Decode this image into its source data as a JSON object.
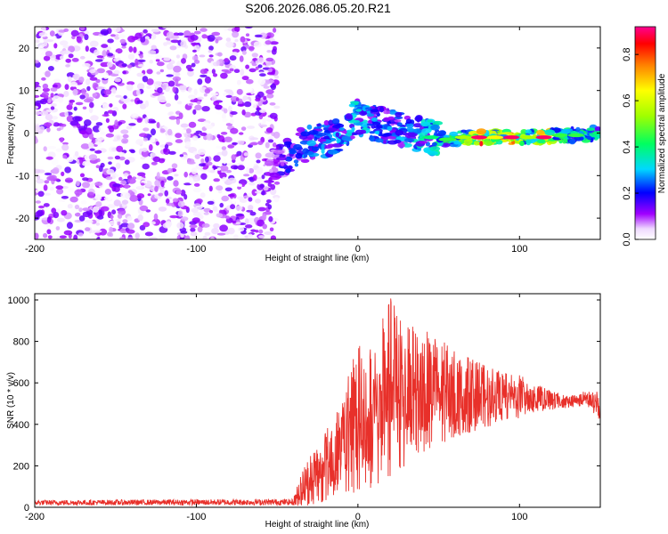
{
  "title": "S206.2026.086.05.20.R21",
  "chart_data": [
    {
      "type": "heatmap",
      "xlabel": "Height of straight line (km)",
      "ylabel": "Frequency (Hz)",
      "xlim": [
        -200,
        150
      ],
      "ylim": [
        -25,
        25
      ],
      "xticks": [
        -200,
        -100,
        0,
        100
      ],
      "yticks": [
        20,
        10,
        0,
        -10,
        -20
      ],
      "colorbar": {
        "label": "Normalized spectral amplitude",
        "range": [
          0.0,
          0.92
        ],
        "ticks": [
          "0.0",
          "0.2",
          "0.4",
          "0.6",
          "0.8"
        ],
        "tick_values": [
          0.0,
          0.2,
          0.4,
          0.6,
          0.8
        ]
      },
      "trace": {
        "x": [
          -55,
          -45,
          -35,
          -25,
          -15,
          -5,
          0,
          5,
          15,
          25,
          35,
          45,
          55,
          65,
          75,
          85,
          95,
          105,
          115,
          125,
          135,
          150
        ],
        "frequency": [
          -8,
          -6,
          -3,
          -2,
          -1,
          2,
          4,
          3,
          2,
          1,
          0,
          -1,
          -1.5,
          -1,
          -1,
          -1,
          -1,
          -1,
          -1,
          -0.5,
          -0.5,
          0
        ],
        "amplitude": [
          0.15,
          0.2,
          0.3,
          0.3,
          0.3,
          0.35,
          0.4,
          0.35,
          0.3,
          0.3,
          0.35,
          0.4,
          0.45,
          0.55,
          0.9,
          0.65,
          0.9,
          0.55,
          0.9,
          0.45,
          0.45,
          0.4
        ]
      },
      "noise_region": {
        "x_range": [
          -200,
          -50
        ],
        "amplitude_range": [
          0.0,
          0.15
        ]
      }
    },
    {
      "type": "line",
      "xlabel": "Height of straight line (km)",
      "ylabel": "SNR (10 * v/v)",
      "xlim": [
        -200,
        150
      ],
      "ylim": [
        0,
        1030
      ],
      "xticks": [
        -200,
        -100,
        0,
        100
      ],
      "yticks": [
        0,
        200,
        400,
        600,
        800,
        1000
      ],
      "series": [
        {
          "name": "SNR",
          "color": "#e8302a",
          "envelope": {
            "x": [
              -200,
              -40,
              -35,
              -30,
              -20,
              -10,
              0,
              10,
              20,
              30,
              40,
              50,
              60,
              70,
              80,
              90,
              100,
              110,
              120,
              130,
              140,
              150
            ],
            "low": [
              10,
              10,
              5,
              10,
              30,
              80,
              60,
              100,
              150,
              200,
              260,
              300,
              340,
              360,
              380,
              420,
              430,
              460,
              470,
              480,
              490,
              420
            ],
            "high": [
              35,
              40,
              180,
              260,
              380,
              500,
              850,
              780,
              1030,
              880,
              860,
              820,
              760,
              720,
              680,
              650,
              640,
              600,
              560,
              540,
              560,
              560
            ]
          }
        }
      ]
    }
  ]
}
